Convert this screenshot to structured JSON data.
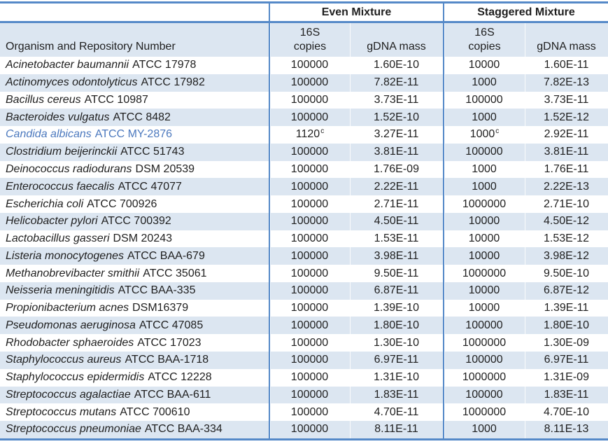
{
  "colors": {
    "accent_border": "#5589C8",
    "row_fill": "#DCE6F1",
    "highlight_text": "#4C79BE",
    "text": "#1F1F1F"
  },
  "header": {
    "organism_column": "Organism and Repository Number",
    "sections": [
      {
        "label": "Even Mixture",
        "copies_line1": "16S",
        "copies_line2": "copies",
        "gdna_label": "gDNA mass"
      },
      {
        "label": "Staggered Mixture",
        "copies_line1": "16S",
        "copies_line2": "copies",
        "gdna_label": "gDNA mass"
      }
    ]
  },
  "rows": [
    {
      "name_italic": "Acinetobacter baumannii",
      "name_rest": "ATCC 17978",
      "even_copies": "100000",
      "even_copies_sup": "",
      "even_gdna": "1.60E-10",
      "stag_copies": "10000",
      "stag_copies_sup": "",
      "stag_gdna": "1.60E-11",
      "highlight": false
    },
    {
      "name_italic": "Actinomyces odontolyticus",
      "name_rest": "ATCC 17982",
      "even_copies": "100000",
      "even_copies_sup": "",
      "even_gdna": "7.82E-11",
      "stag_copies": "1000",
      "stag_copies_sup": "",
      "stag_gdna": "7.82E-13",
      "highlight": false
    },
    {
      "name_italic": "Bacillus cereus",
      "name_rest": "ATCC 10987",
      "even_copies": "100000",
      "even_copies_sup": "",
      "even_gdna": "3.73E-11",
      "stag_copies": "100000",
      "stag_copies_sup": "",
      "stag_gdna": "3.73E-11",
      "highlight": false
    },
    {
      "name_italic": "Bacteroides vulgatus",
      "name_rest": "ATCC 8482",
      "even_copies": "100000",
      "even_copies_sup": "",
      "even_gdna": "1.52E-10",
      "stag_copies": "1000",
      "stag_copies_sup": "",
      "stag_gdna": "1.52E-12",
      "highlight": false
    },
    {
      "name_italic": "Candida albicans",
      "name_rest": "ATCC MY-2876",
      "even_copies": "1120",
      "even_copies_sup": "c",
      "even_gdna": "3.27E-11",
      "stag_copies": "1000",
      "stag_copies_sup": "c",
      "stag_gdna": "2.92E-11",
      "highlight": true
    },
    {
      "name_italic": "Clostridium beijerinckii",
      "name_rest": "ATCC 51743",
      "even_copies": "100000",
      "even_copies_sup": "",
      "even_gdna": "3.81E-11",
      "stag_copies": "100000",
      "stag_copies_sup": "",
      "stag_gdna": "3.81E-11",
      "highlight": false
    },
    {
      "name_italic": "Deinococcus radiodurans",
      "name_rest": "DSM 20539",
      "even_copies": "100000",
      "even_copies_sup": "",
      "even_gdna": "1.76E-09",
      "stag_copies": "1000",
      "stag_copies_sup": "",
      "stag_gdna": "1.76E-11",
      "highlight": false
    },
    {
      "name_italic": "Enterococcus faecalis",
      "name_rest": "ATCC 47077",
      "even_copies": "100000",
      "even_copies_sup": "",
      "even_gdna": "2.22E-11",
      "stag_copies": "1000",
      "stag_copies_sup": "",
      "stag_gdna": "2.22E-13",
      "highlight": false
    },
    {
      "name_italic": "Escherichia coli",
      "name_rest": "ATCC 700926",
      "even_copies": "100000",
      "even_copies_sup": "",
      "even_gdna": "2.71E-11",
      "stag_copies": "1000000",
      "stag_copies_sup": "",
      "stag_gdna": "2.71E-10",
      "highlight": false
    },
    {
      "name_italic": "Helicobacter pylori",
      "name_rest": "ATCC 700392",
      "even_copies": "100000",
      "even_copies_sup": "",
      "even_gdna": "4.50E-11",
      "stag_copies": "10000",
      "stag_copies_sup": "",
      "stag_gdna": "4.50E-12",
      "highlight": false
    },
    {
      "name_italic": "Lactobacillus gasseri",
      "name_rest": "DSM 20243",
      "even_copies": "100000",
      "even_copies_sup": "",
      "even_gdna": "1.53E-11",
      "stag_copies": "10000",
      "stag_copies_sup": "",
      "stag_gdna": "1.53E-12",
      "highlight": false
    },
    {
      "name_italic": "Listeria monocytogenes",
      "name_rest": "ATCC BAA-679",
      "even_copies": "100000",
      "even_copies_sup": "",
      "even_gdna": "3.98E-11",
      "stag_copies": "10000",
      "stag_copies_sup": "",
      "stag_gdna": "3.98E-12",
      "highlight": false
    },
    {
      "name_italic": "Methanobrevibacter smithii",
      "name_rest": "ATCC 35061",
      "even_copies": "100000",
      "even_copies_sup": "",
      "even_gdna": "9.50E-11",
      "stag_copies": "1000000",
      "stag_copies_sup": "",
      "stag_gdna": "9.50E-10",
      "highlight": false
    },
    {
      "name_italic": "Neisseria meningitidis",
      "name_rest": "ATCC BAA-335",
      "even_copies": "100000",
      "even_copies_sup": "",
      "even_gdna": "6.87E-11",
      "stag_copies": "10000",
      "stag_copies_sup": "",
      "stag_gdna": "6.87E-12",
      "highlight": false
    },
    {
      "name_italic": "Propionibacterium acnes",
      "name_rest": "DSM16379",
      "even_copies": "100000",
      "even_copies_sup": "",
      "even_gdna": "1.39E-10",
      "stag_copies": "10000",
      "stag_copies_sup": "",
      "stag_gdna": "1.39E-11",
      "highlight": false
    },
    {
      "name_italic": "Pseudomonas aeruginosa",
      "name_rest": "ATCC 47085",
      "even_copies": "100000",
      "even_copies_sup": "",
      "even_gdna": "1.80E-10",
      "stag_copies": "100000",
      "stag_copies_sup": "",
      "stag_gdna": "1.80E-10",
      "highlight": false
    },
    {
      "name_italic": "Rhodobacter sphaeroides",
      "name_rest": "ATCC 17023",
      "even_copies": "100000",
      "even_copies_sup": "",
      "even_gdna": "1.30E-10",
      "stag_copies": "1000000",
      "stag_copies_sup": "",
      "stag_gdna": "1.30E-09",
      "highlight": false
    },
    {
      "name_italic": "Staphylococcus aureus",
      "name_rest": "ATCC BAA-1718",
      "even_copies": "100000",
      "even_copies_sup": "",
      "even_gdna": "6.97E-11",
      "stag_copies": "100000",
      "stag_copies_sup": "",
      "stag_gdna": "6.97E-11",
      "highlight": false
    },
    {
      "name_italic": "Staphylococcus epidermidis",
      "name_rest": "ATCC 12228",
      "even_copies": "100000",
      "even_copies_sup": "",
      "even_gdna": "1.31E-10",
      "stag_copies": "1000000",
      "stag_copies_sup": "",
      "stag_gdna": "1.31E-09",
      "highlight": false
    },
    {
      "name_italic": "Streptococcus agalactiae",
      "name_rest": "ATCC BAA-611",
      "even_copies": "100000",
      "even_copies_sup": "",
      "even_gdna": "1.83E-11",
      "stag_copies": "100000",
      "stag_copies_sup": "",
      "stag_gdna": "1.83E-11",
      "highlight": false
    },
    {
      "name_italic": "Streptococcus mutans",
      "name_rest": "ATCC 700610",
      "even_copies": "100000",
      "even_copies_sup": "",
      "even_gdna": "4.70E-11",
      "stag_copies": "1000000",
      "stag_copies_sup": "",
      "stag_gdna": "4.70E-10",
      "highlight": false
    },
    {
      "name_italic": "Streptococcus pneumoniae",
      "name_rest": "ATCC BAA-334",
      "even_copies": "100000",
      "even_copies_sup": "",
      "even_gdna": "8.11E-11",
      "stag_copies": "1000",
      "stag_copies_sup": "",
      "stag_gdna": "8.11E-13",
      "highlight": false
    }
  ]
}
